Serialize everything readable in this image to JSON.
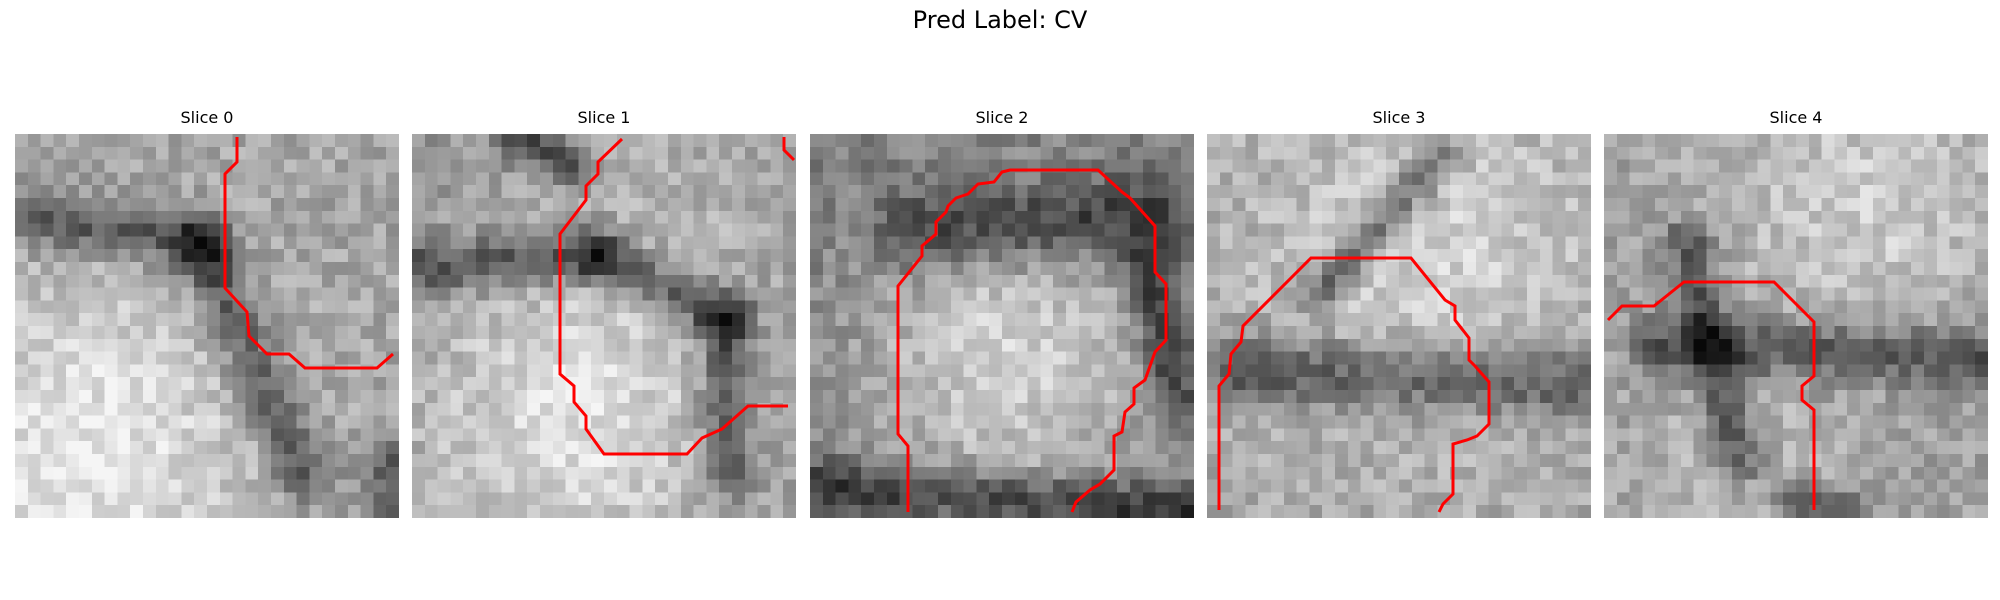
{
  "figure": {
    "title": "Pred Label: CV",
    "contour_color": "#ff0000"
  },
  "panels": [
    {
      "title": "Slice 0"
    },
    {
      "title": "Slice 1"
    },
    {
      "title": "Slice 2"
    },
    {
      "title": "Slice 3"
    },
    {
      "title": "Slice 4"
    }
  ]
}
